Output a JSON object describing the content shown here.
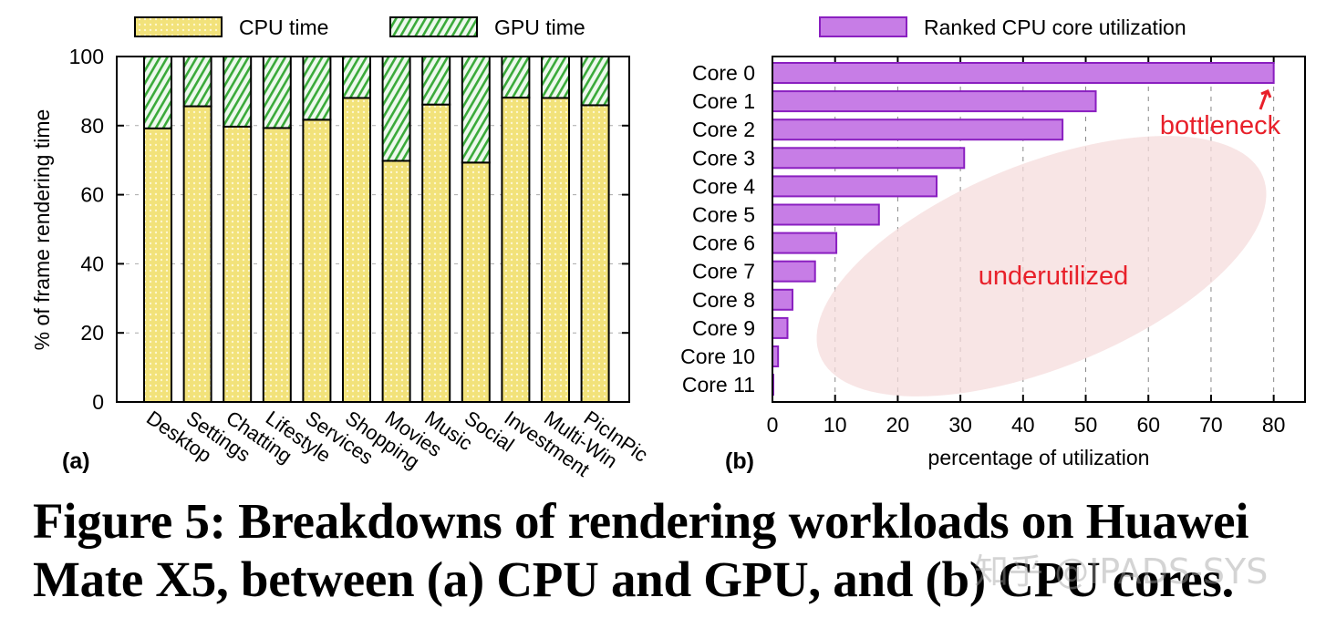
{
  "chart_data": [
    {
      "type": "bar",
      "stacked": true,
      "panel_label": "(a)",
      "ylabel": "% of frame rendering time",
      "xlabel": "",
      "ylim": [
        0,
        100
      ],
      "yticks": [
        0,
        20,
        40,
        60,
        80,
        100
      ],
      "grid": "horizontal dashed",
      "legend_placement": "top",
      "categories": [
        "Desktop",
        "Settings",
        "Chatting",
        "Lifestyle",
        "Services",
        "Shopping",
        "Movies",
        "Music",
        "Social",
        "Investment",
        "Multi-Win",
        "PicInPic"
      ],
      "series": [
        {
          "name": "CPU time",
          "color": "#f2e27a",
          "values": [
            79.2,
            85.6,
            79.7,
            79.3,
            81.7,
            88.0,
            69.8,
            86.1,
            69.3,
            88.1,
            88.0,
            85.9
          ]
        },
        {
          "name": "GPU time",
          "color": "#3aaa3a",
          "values": [
            20.8,
            14.4,
            20.3,
            20.7,
            18.3,
            12.0,
            30.2,
            13.9,
            30.7,
            11.9,
            12.0,
            14.1
          ]
        }
      ]
    },
    {
      "type": "bar",
      "orientation": "horizontal",
      "panel_label": "(b)",
      "xlabel": "percentage of utilization",
      "ylabel": "",
      "xlim": [
        0,
        85
      ],
      "xticks": [
        0,
        10,
        20,
        30,
        40,
        50,
        60,
        70,
        80
      ],
      "grid": "vertical dashed",
      "legend_placement": "top",
      "categories": [
        "Core 0",
        "Core 1",
        "Core 2",
        "Core 3",
        "Core 4",
        "Core 5",
        "Core 6",
        "Core 7",
        "Core 8",
        "Core 9",
        "Core 10",
        "Core 11"
      ],
      "series": [
        {
          "name": "Ranked CPU core utilization",
          "color": "#c77de6",
          "values": [
            80,
            51.6,
            46.3,
            30.6,
            26.2,
            17.0,
            10.2,
            6.8,
            3.2,
            2.4,
            0.9,
            0.1
          ]
        }
      ],
      "annotations": [
        {
          "text": "bottleneck",
          "color": "#e8202a"
        },
        {
          "text": "underutilized",
          "color": "#e8202a"
        }
      ]
    }
  ],
  "caption": {
    "line1": "Figure 5: Breakdowns of rendering workloads on Huawei",
    "line2": "Mate X5, between (a) CPU and GPU, and (b) CPU cores."
  },
  "watermark": "知乎 @IPADS-SYS"
}
